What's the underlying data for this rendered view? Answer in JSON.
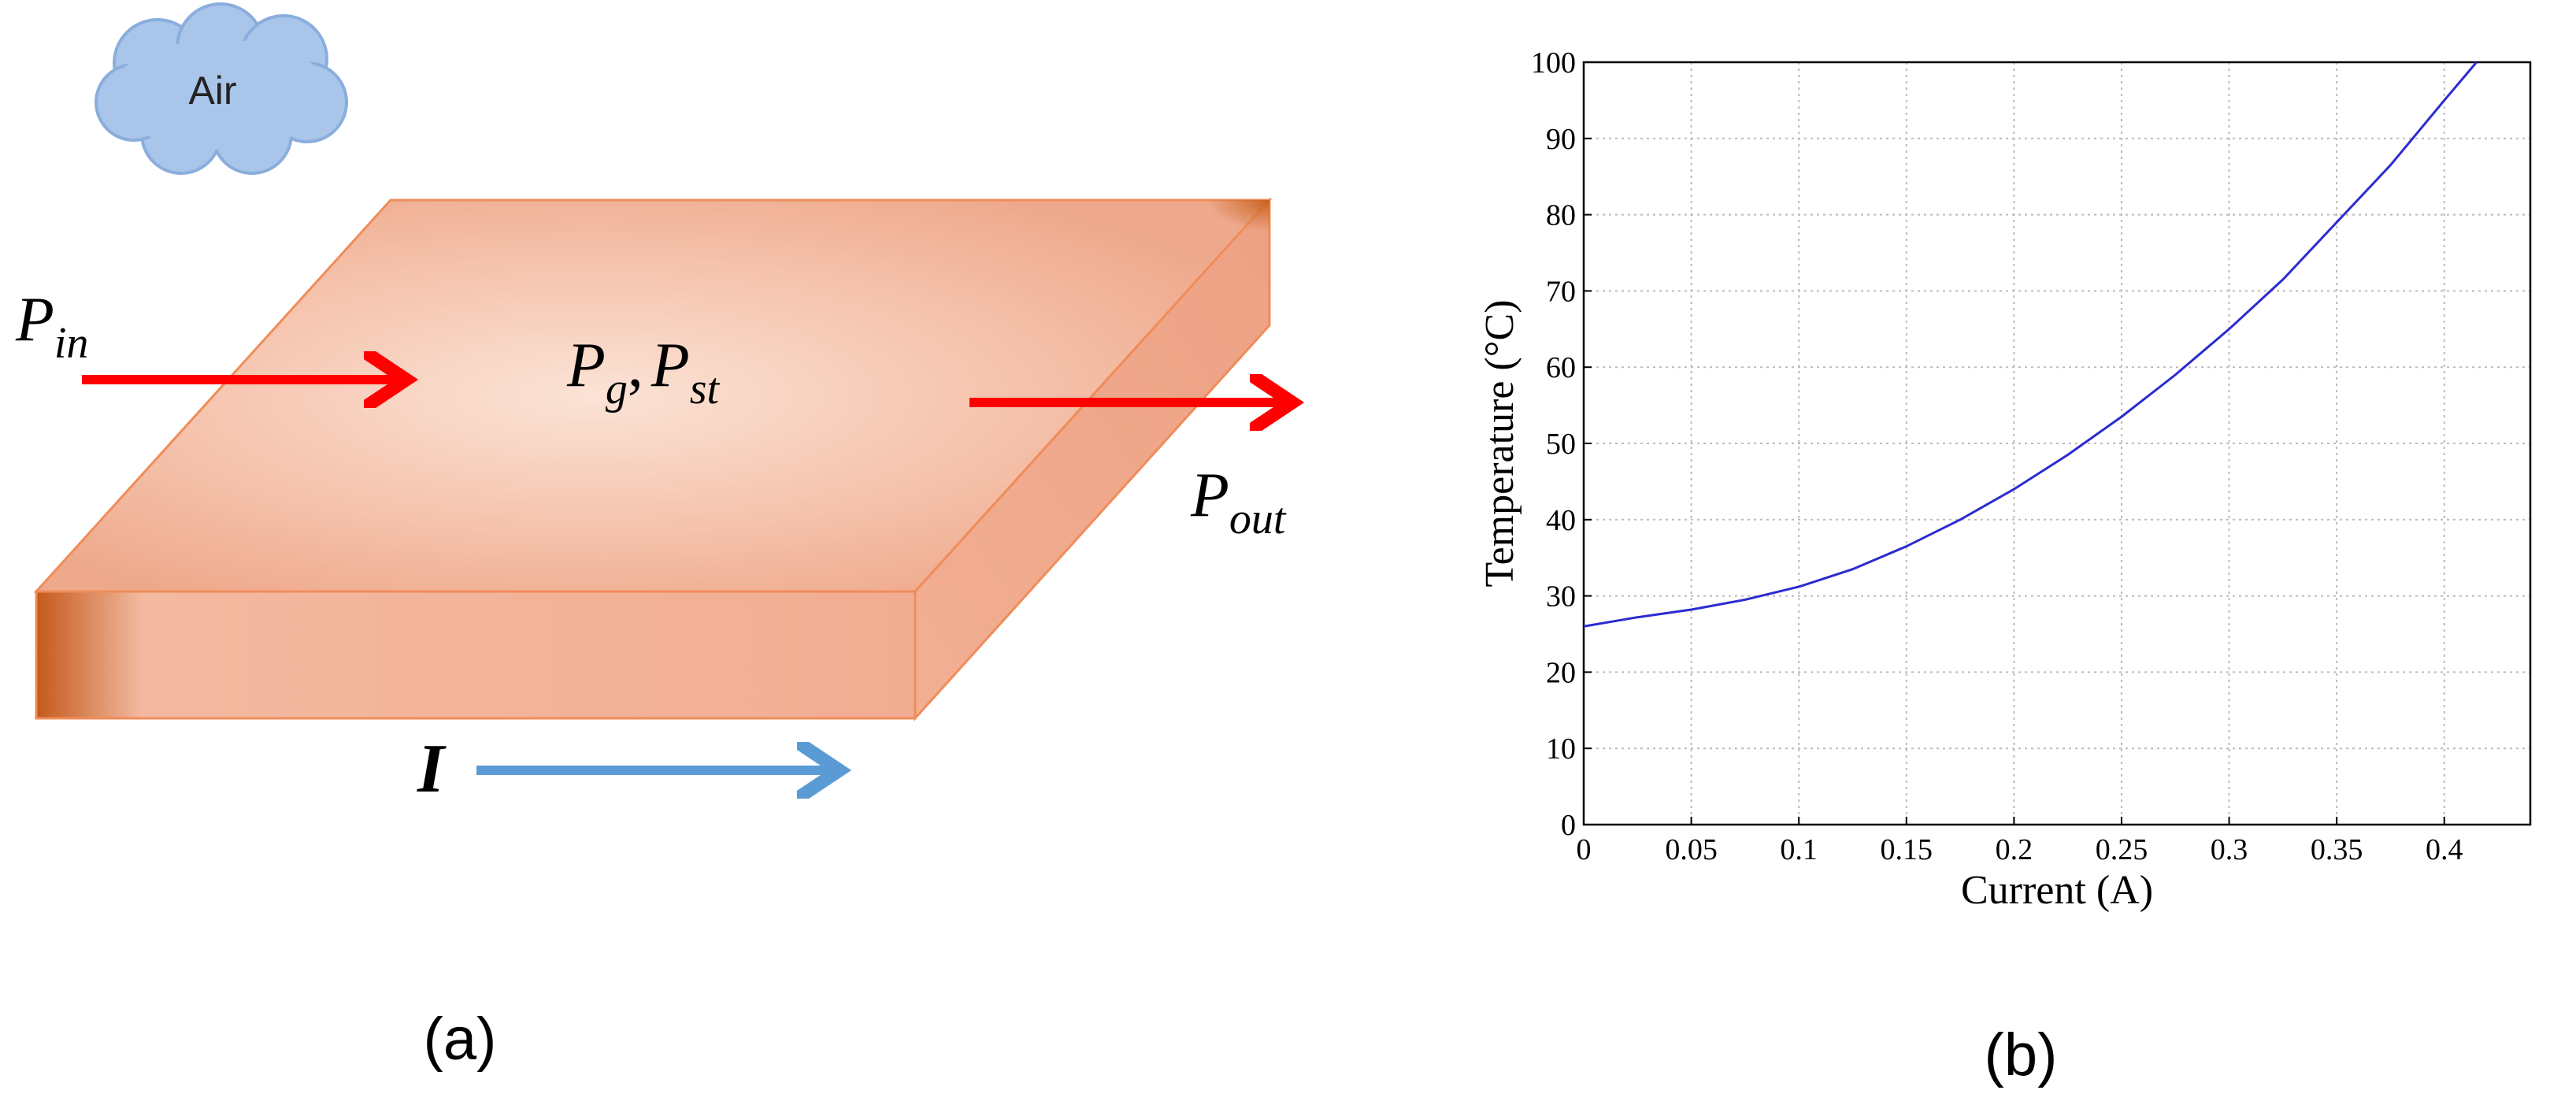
{
  "diagram": {
    "cloud_label": "Air",
    "input_power": {
      "main": "P",
      "sub": "in"
    },
    "stored_power": [
      {
        "main": "P",
        "sub": "g"
      },
      {
        "main": "P",
        "sub": "st"
      }
    ],
    "output_power": {
      "main": "P",
      "sub": "out"
    },
    "current_label": "I",
    "panel_label": "(a)"
  },
  "chart_data": {
    "type": "line",
    "panel_label": "(b)",
    "x_label": "Current (A)",
    "y_label": "Temperature (°C)",
    "x": [
      0,
      0.025,
      0.05,
      0.075,
      0.1,
      0.125,
      0.15,
      0.175,
      0.2,
      0.225,
      0.25,
      0.275,
      0.3,
      0.325,
      0.35,
      0.375,
      0.4,
      0.415
    ],
    "series": [
      {
        "name": "Temperature",
        "color": "#2b2bd0",
        "values": [
          26,
          27.2,
          28.2,
          29.5,
          31.2,
          33.5,
          36.5,
          40,
          44,
          48.5,
          53.5,
          59,
          65,
          71.5,
          79,
          86.5,
          95,
          100
        ]
      }
    ],
    "xlim": [
      0,
      0.44
    ],
    "ylim": [
      0,
      100
    ],
    "xticks": [
      0,
      0.05,
      0.1,
      0.15,
      0.2,
      0.25,
      0.3,
      0.35,
      0.4
    ],
    "yticks": [
      0,
      10,
      20,
      30,
      40,
      50,
      60,
      70,
      80,
      90,
      100
    ],
    "grid": true
  }
}
